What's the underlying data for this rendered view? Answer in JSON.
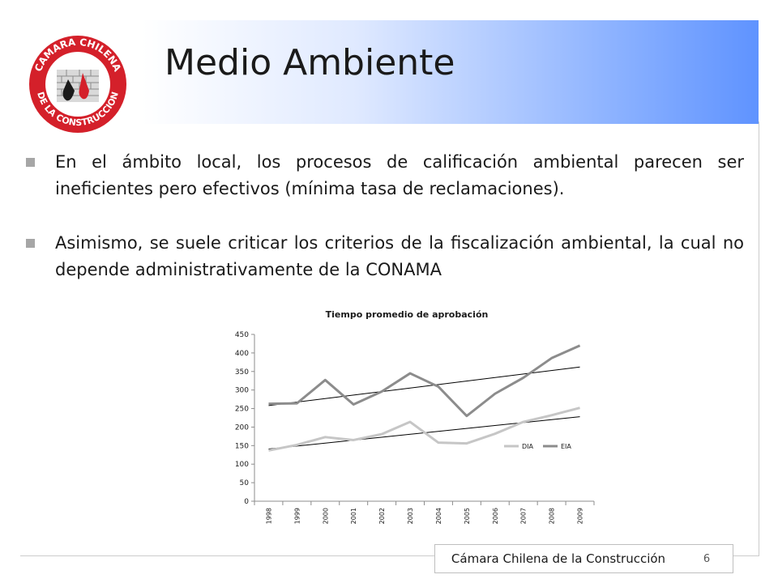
{
  "slide": {
    "title": "Medio Ambiente",
    "bullets": [
      "En el ámbito local, los procesos de calificación ambiental parecen ser ineficientes pero efectivos (mínima tasa de reclamaciones).",
      "Asimismo, se suele criticar los criterios de la fiscalización ambiental, la cual no depende administrativamente de la CONAMA"
    ],
    "footer": "Cámara Chilena de la Construcción",
    "page_number": "6",
    "logo": {
      "text_top": "CAMARA CHILENA",
      "text_bottom": "DE LA CONSTRUCCION",
      "color": "#d4202a"
    }
  },
  "chart_data": {
    "type": "line",
    "title": "Tiempo promedio de aprobación",
    "categories": [
      "1998",
      "1999",
      "2000",
      "2001",
      "2002",
      "2003",
      "2004",
      "2005",
      "2006",
      "2007",
      "2008",
      "2009"
    ],
    "series": [
      {
        "name": "DIA",
        "color": "#c6c6c6",
        "values": [
          137,
          152,
          173,
          165,
          181,
          214,
          158,
          156,
          182,
          214,
          232,
          252
        ]
      },
      {
        "name": "EIA",
        "color": "#8c8c8c",
        "values": [
          263,
          264,
          327,
          261,
          296,
          345,
          309,
          230,
          290,
          333,
          386,
          420
        ]
      }
    ],
    "trendlines": [
      {
        "of": "DIA",
        "start": 141,
        "end": 228,
        "color": "#000000"
      },
      {
        "of": "EIA",
        "start": 258,
        "end": 362,
        "color": "#000000"
      }
    ],
    "ylim": [
      0,
      450
    ],
    "yticks": [
      "0",
      "50",
      "100",
      "150",
      "200",
      "250",
      "300",
      "350",
      "400",
      "450"
    ],
    "grid": false,
    "legend": "inside-right"
  }
}
